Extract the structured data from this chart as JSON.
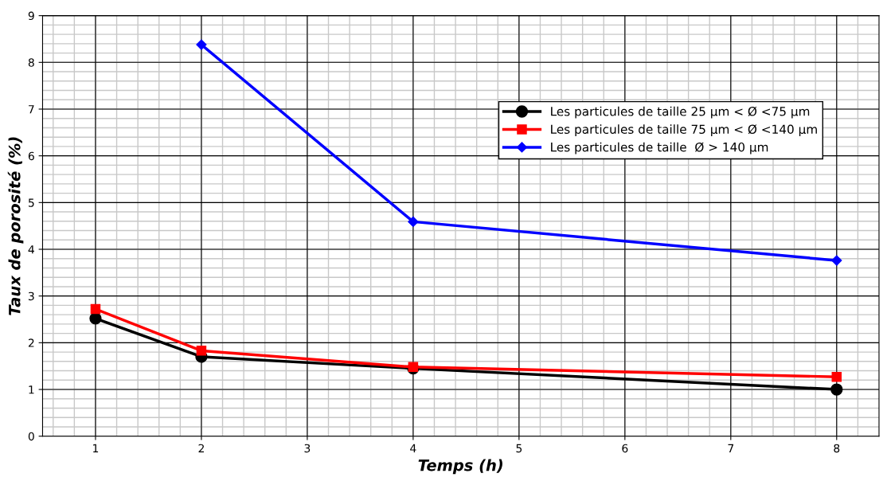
{
  "chart_data": {
    "type": "line",
    "xlabel": "Temps (h)",
    "ylabel": "Taux de porosité (%)",
    "xlim": [
      0.5,
      8.4
    ],
    "ylim": [
      0,
      9
    ],
    "xticks": [
      1,
      2,
      3,
      4,
      5,
      6,
      7,
      8
    ],
    "yticks": [
      0,
      1,
      2,
      3,
      4,
      5,
      6,
      7,
      8,
      9
    ],
    "grid": true,
    "legend": "top right",
    "line_style": "solid",
    "series": [
      {
        "name": "Les particules de taille 25 µm < Ø <75 µm",
        "color": "#000000",
        "marker": "circle",
        "x": [
          1,
          2,
          4,
          8
        ],
        "values": [
          2.52,
          1.7,
          1.45,
          1.0
        ]
      },
      {
        "name": "Les particules de taille 75 µm < Ø <140 µm",
        "color": "#ff0000",
        "marker": "square",
        "x": [
          1,
          2,
          4,
          8
        ],
        "values": [
          2.72,
          1.83,
          1.48,
          1.27
        ]
      },
      {
        "name": "Les particules de taille  Ø > 140 µm",
        "color": "#0000ff",
        "marker": "diamond",
        "x": [
          2,
          4,
          8
        ],
        "values": [
          8.38,
          4.59,
          3.76
        ]
      }
    ]
  }
}
